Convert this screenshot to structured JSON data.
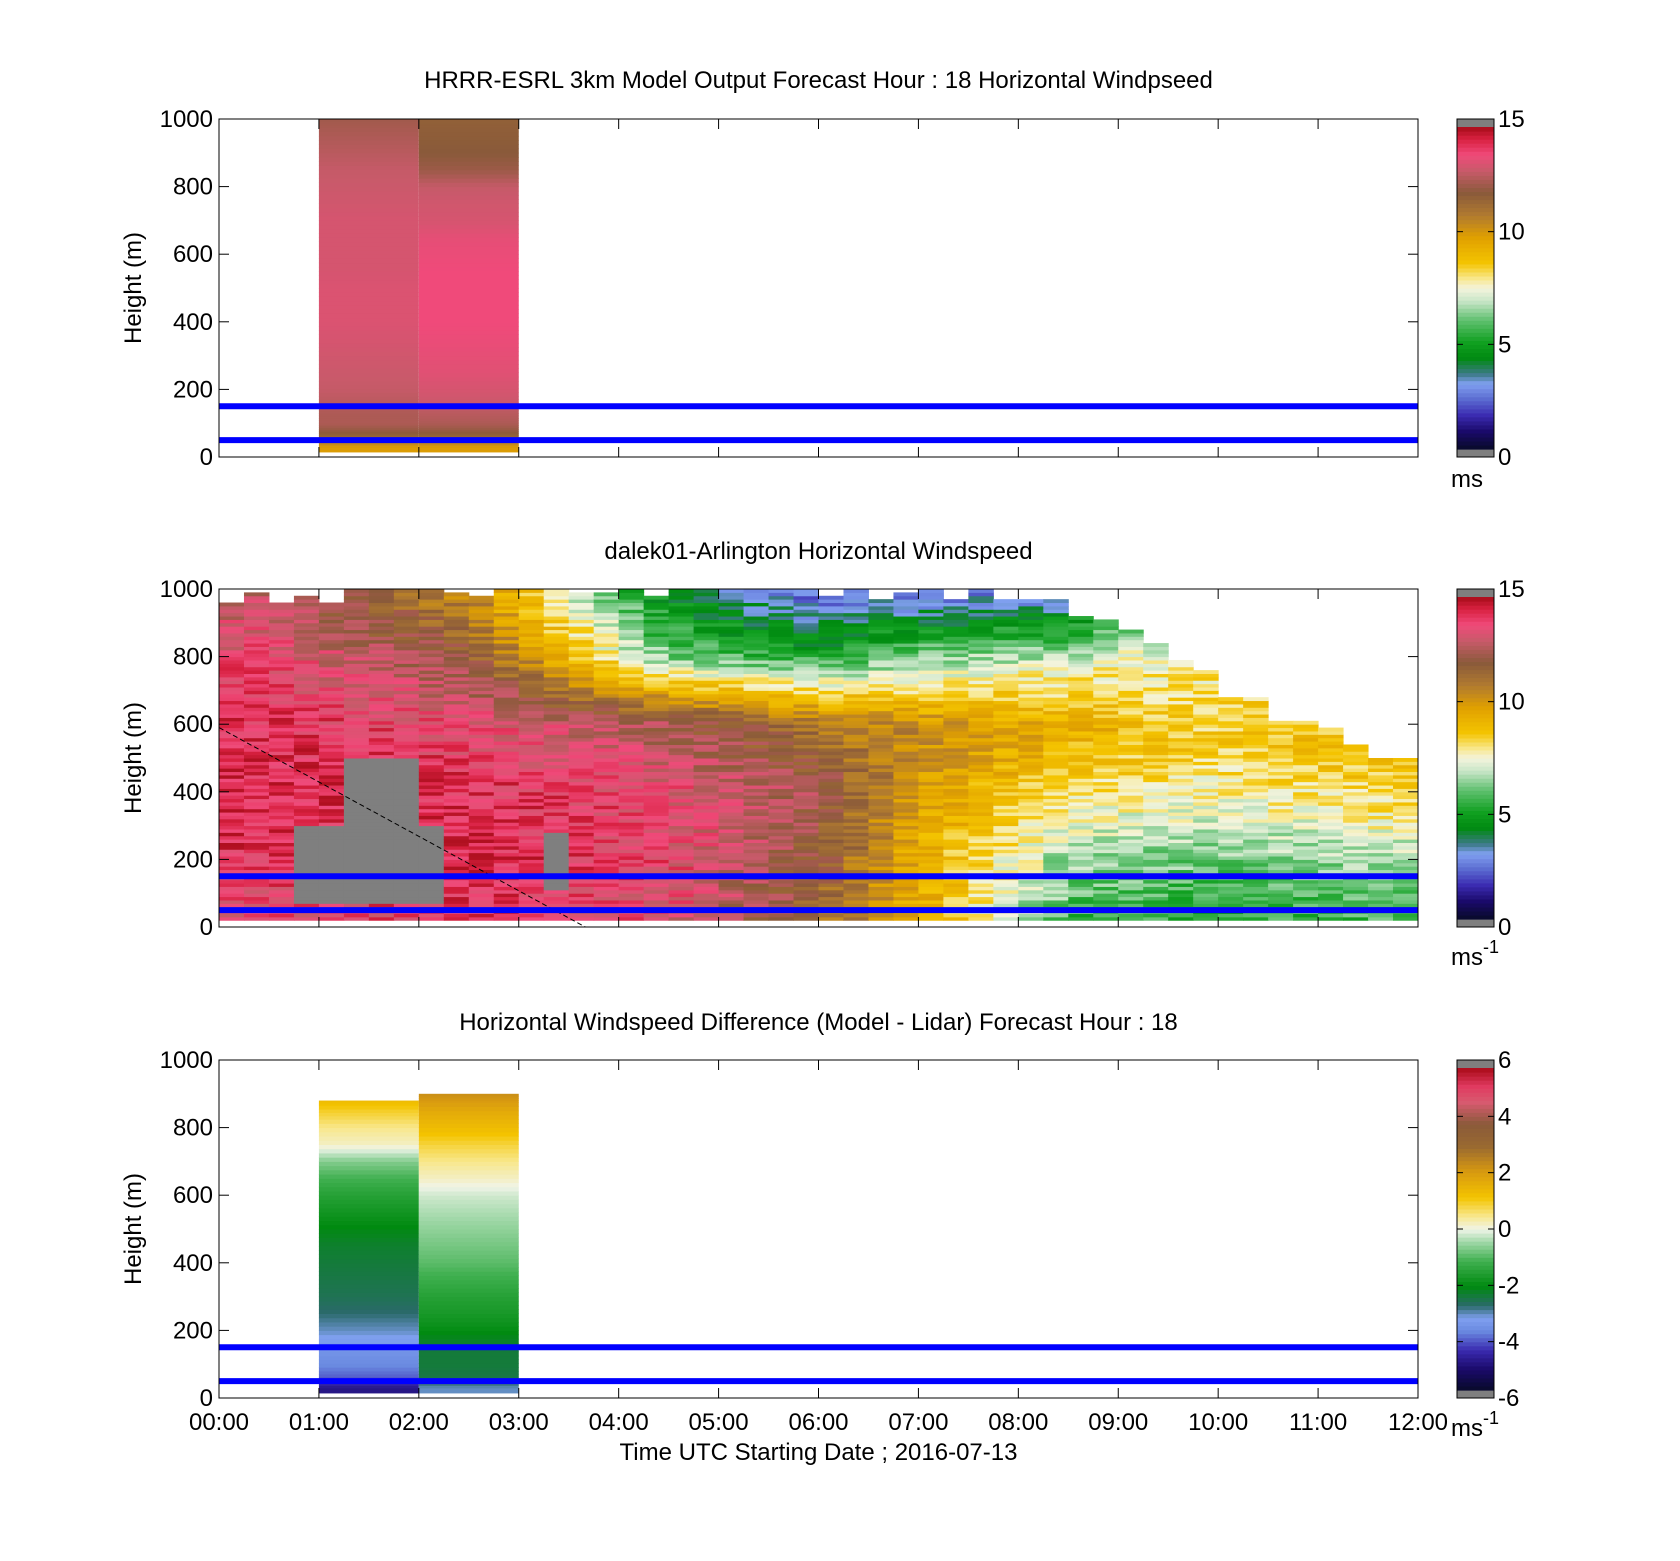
{
  "chart_data": [
    {
      "type": "heatmap",
      "id": "model",
      "title": "HRRR-ESRL 3km Model Output   Forecast Hour : 18 Horizontal Windpseed",
      "ylabel": "Height (m)",
      "xlim": [
        "00:00",
        "12:00"
      ],
      "ylim": [
        0,
        1000
      ],
      "yticks": [
        0,
        200,
        400,
        600,
        800,
        1000
      ],
      "colorbar": {
        "min": 0,
        "max": 15,
        "ticks": [
          "0",
          "5",
          "10",
          "15"
        ],
        "unit": "ms",
        "unit_sup": ""
      },
      "reference_lines_m": [
        50,
        150
      ],
      "reference_line_color": "#0000ff",
      "columns": [
        {
          "t_start": "01:00",
          "t_end": "02:00",
          "heights": [
            30,
            55,
            75,
            100,
            130,
            160,
            200,
            250,
            300,
            350,
            400,
            450,
            500,
            550,
            600,
            650,
            700,
            750,
            800,
            850,
            900,
            950,
            1000
          ],
          "values": [
            10,
            11.4,
            12.1,
            12.6,
            12.6,
            12.8,
            13.0,
            13.1,
            13.2,
            13.3,
            13.4,
            13.4,
            13.4,
            13.3,
            13.3,
            13.3,
            13.3,
            13.2,
            13.1,
            13.0,
            12.8,
            12.6,
            12.4
          ]
        },
        {
          "t_start": "02:00",
          "t_end": "03:00",
          "heights": [
            30,
            55,
            75,
            100,
            130,
            160,
            200,
            250,
            300,
            350,
            400,
            450,
            500,
            550,
            600,
            650,
            700,
            750,
            800,
            850,
            900,
            950,
            1000
          ],
          "values": [
            10,
            11.4,
            12.1,
            12.6,
            12.8,
            13.1,
            13.3,
            13.5,
            13.6,
            13.7,
            13.8,
            13.8,
            13.8,
            13.8,
            13.7,
            13.6,
            13.3,
            13.2,
            13.0,
            12.3,
            12.0,
            11.9,
            11.8
          ]
        }
      ]
    },
    {
      "type": "heatmap",
      "id": "lidar",
      "title": "dalek01-Arlington  Horizontal Windspeed",
      "ylabel": "Height (m)",
      "xlim": [
        "00:00",
        "12:00"
      ],
      "ylim": [
        0,
        1000
      ],
      "yticks": [
        0,
        200,
        400,
        600,
        800,
        1000
      ],
      "colorbar": {
        "min": 0,
        "max": 15,
        "ticks": [
          "0",
          "5",
          "10",
          "15"
        ],
        "unit": "ms",
        "unit_sup": "-1"
      },
      "reference_lines_m": [
        50,
        150
      ],
      "reference_line_color": "#0000ff",
      "boundary_line": {
        "style": "dashed",
        "from": [
          "00:00",
          590
        ],
        "to": [
          "03:40",
          0
        ]
      },
      "profiles_approx": [
        {
          "time": "00:30",
          "top_m": 960,
          "speed_ms": [
            13.5,
            14.2,
            14.5,
            14.3,
            13.8,
            13.0
          ]
        },
        {
          "time": "02:30",
          "top_m": 1000,
          "speed_ms": [
            14.0,
            14.5,
            14.3,
            13.6,
            12.0,
            10.5
          ]
        },
        {
          "time": "04:30",
          "top_m": 1000,
          "speed_ms": [
            13.5,
            13.8,
            13.6,
            12.5,
            6.0,
            4.0
          ]
        },
        {
          "time": "06:00",
          "top_m": 1000,
          "speed_ms": [
            11.5,
            12.0,
            12.5,
            11.0,
            5.0,
            2.0
          ]
        },
        {
          "time": "07:00",
          "top_m": 980,
          "speed_ms": [
            9.5,
            9.5,
            10.0,
            10.5,
            6.5,
            2.5
          ]
        },
        {
          "time": "08:30",
          "top_m": 960,
          "speed_ms": [
            5.5,
            6.5,
            8.0,
            9.5,
            7.5,
            3.0
          ]
        },
        {
          "time": "10:00",
          "top_m": 720,
          "speed_ms": [
            5.0,
            6.0,
            7.5,
            8.5,
            8.0
          ]
        },
        {
          "time": "11:30",
          "top_m": 520,
          "speed_ms": [
            5.5,
            6.5,
            8.0,
            9.0
          ]
        }
      ]
    },
    {
      "type": "heatmap",
      "id": "difference",
      "title": "Horizontal Windspeed Difference (Model - Lidar) Forecast Hour : 18",
      "ylabel": "Height (m)",
      "xlabel": "Time UTC  Starting Date ; 2016-07-13",
      "xlim": [
        "00:00",
        "12:00"
      ],
      "xticks": [
        "00:00",
        "01:00",
        "02:00",
        "03:00",
        "04:00",
        "05:00",
        "06:00",
        "07:00",
        "08:00",
        "09:00",
        "10:00",
        "11:00",
        "12:00"
      ],
      "ylim": [
        0,
        1000
      ],
      "yticks": [
        0,
        200,
        400,
        600,
        800,
        1000
      ],
      "colorbar": {
        "min": -6,
        "max": 6,
        "ticks": [
          "-6",
          "-4",
          "-2",
          "0",
          "2",
          "4",
          "6"
        ],
        "unit": "ms",
        "unit_sup": "-1"
      },
      "reference_lines_m": [
        50,
        150
      ],
      "reference_line_color": "#0000ff",
      "columns": [
        {
          "t_start": "01:00",
          "t_end": "02:00",
          "heights": [
            30,
            60,
            100,
            150,
            200,
            250,
            300,
            350,
            400,
            450,
            500,
            550,
            600,
            650,
            700,
            750,
            800,
            850,
            880
          ],
          "values": [
            -5.0,
            -4.2,
            -3.8,
            -3.6,
            -3.2,
            -2.9,
            -2.7,
            -2.6,
            -2.5,
            -2.4,
            -2.2,
            -1.9,
            -1.6,
            -1.2,
            -0.7,
            0.2,
            0.5,
            1.0,
            1.4
          ]
        },
        {
          "t_start": "02:00",
          "t_end": "03:00",
          "heights": [
            30,
            60,
            100,
            150,
            200,
            250,
            300,
            350,
            400,
            450,
            500,
            550,
            600,
            650,
            700,
            750,
            800,
            850,
            900
          ],
          "values": [
            -3.2,
            -2.6,
            -2.5,
            -2.5,
            -2.1,
            -1.8,
            -1.6,
            -1.3,
            -1.0,
            -0.8,
            -0.6,
            -0.4,
            -0.2,
            0.2,
            0.5,
            0.9,
            1.4,
            1.8,
            2.4
          ]
        }
      ]
    }
  ]
}
